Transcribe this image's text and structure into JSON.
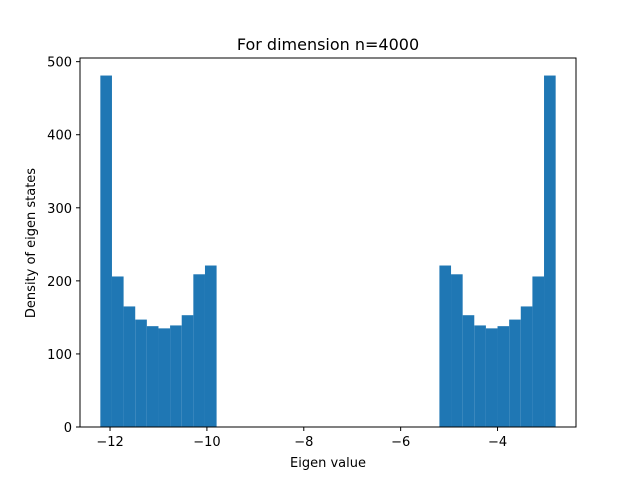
{
  "chart_data": {
    "type": "bar",
    "title": "For dimension n=4000",
    "xlabel": "Eigen value",
    "ylabel": "Density of eigen states",
    "xlim": [
      -12.62,
      -2.38
    ],
    "ylim": [
      0,
      505
    ],
    "xticks": [
      -12,
      -10,
      -8,
      -6,
      -4
    ],
    "xtick_labels": [
      "−12",
      "−10",
      "−8",
      "−6",
      "−4"
    ],
    "yticks": [
      0,
      100,
      200,
      300,
      400,
      500
    ],
    "ytick_labels": [
      "0",
      "100",
      "200",
      "300",
      "400",
      "500"
    ],
    "bar_color": "#1f77b4",
    "grid": false,
    "bins": [
      {
        "x0": -12.2,
        "x1": -11.96,
        "value": 481
      },
      {
        "x0": -11.96,
        "x1": -11.72,
        "value": 206
      },
      {
        "x0": -11.72,
        "x1": -11.48,
        "value": 165
      },
      {
        "x0": -11.48,
        "x1": -11.24,
        "value": 147
      },
      {
        "x0": -11.24,
        "x1": -11.0,
        "value": 138
      },
      {
        "x0": -11.0,
        "x1": -10.76,
        "value": 135
      },
      {
        "x0": -10.76,
        "x1": -10.52,
        "value": 139
      },
      {
        "x0": -10.52,
        "x1": -10.28,
        "value": 153
      },
      {
        "x0": -10.28,
        "x1": -10.04,
        "value": 209
      },
      {
        "x0": -10.04,
        "x1": -9.8,
        "value": 221
      },
      {
        "x0": -5.2,
        "x1": -4.96,
        "value": 221
      },
      {
        "x0": -4.96,
        "x1": -4.72,
        "value": 209
      },
      {
        "x0": -4.72,
        "x1": -4.48,
        "value": 153
      },
      {
        "x0": -4.48,
        "x1": -4.24,
        "value": 139
      },
      {
        "x0": -4.24,
        "x1": -4.0,
        "value": 135
      },
      {
        "x0": -4.0,
        "x1": -3.76,
        "value": 138
      },
      {
        "x0": -3.76,
        "x1": -3.52,
        "value": 147
      },
      {
        "x0": -3.52,
        "x1": -3.28,
        "value": 165
      },
      {
        "x0": -3.28,
        "x1": -3.04,
        "value": 206
      },
      {
        "x0": -3.04,
        "x1": -2.8,
        "value": 481
      }
    ]
  }
}
